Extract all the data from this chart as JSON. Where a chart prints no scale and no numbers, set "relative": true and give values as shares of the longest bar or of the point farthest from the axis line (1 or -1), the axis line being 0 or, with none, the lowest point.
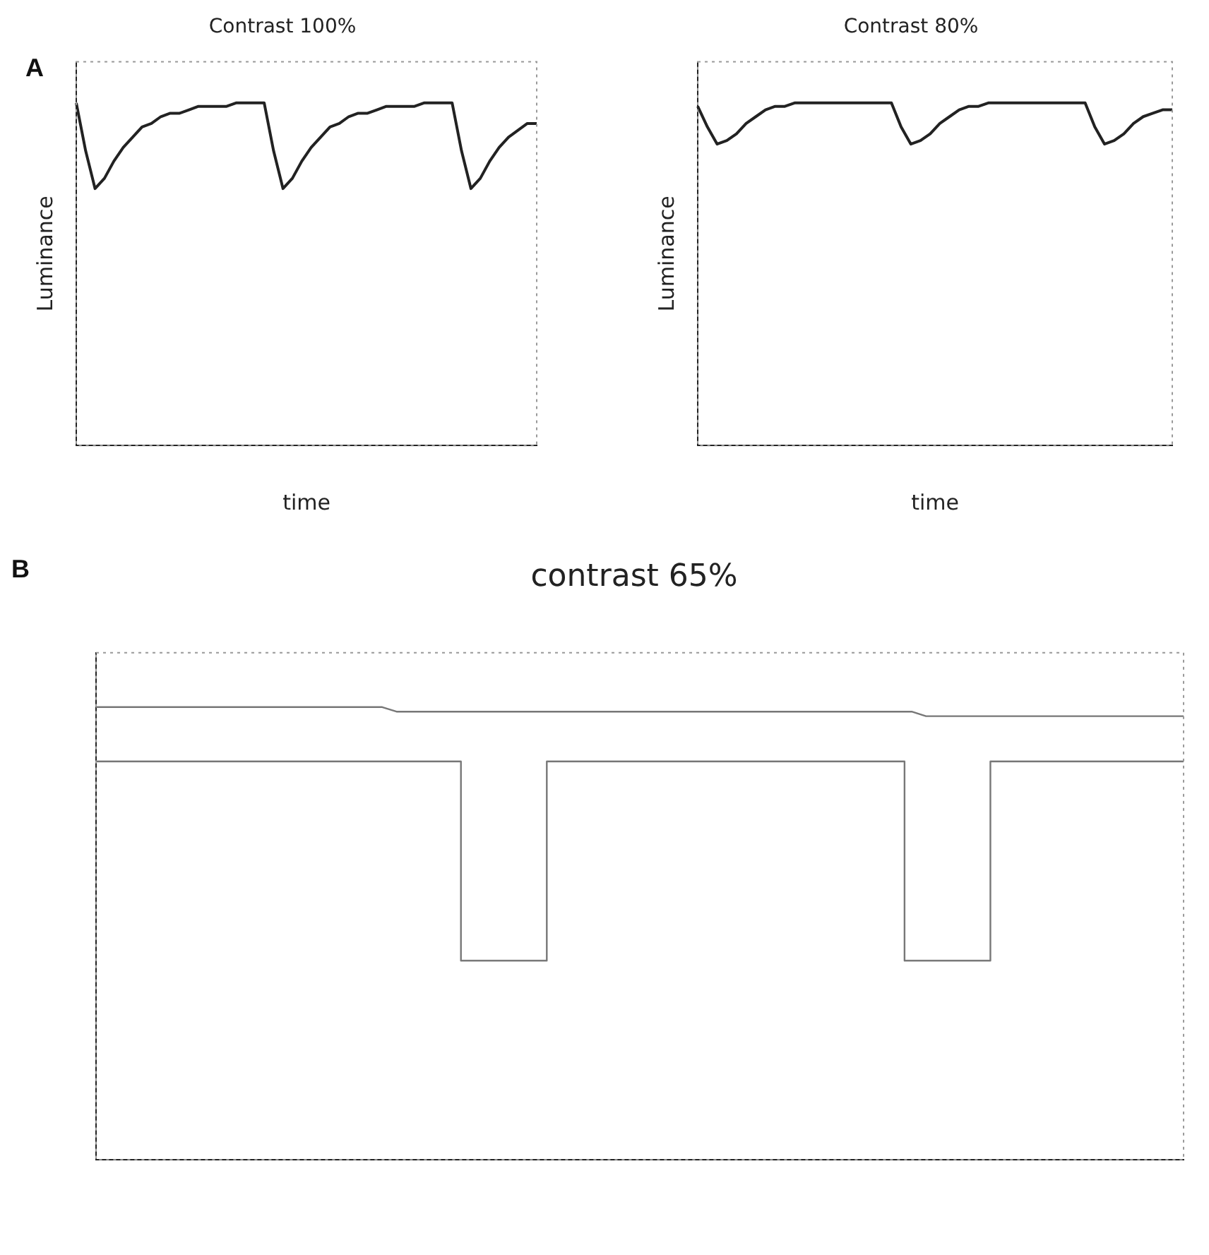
{
  "chart_data": [
    {
      "type": "line",
      "title": "Contrast 100%",
      "xlabel": "time",
      "ylabel": "Luminance",
      "relative": true,
      "legend": false,
      "annotations": [
        "A"
      ],
      "categories": [
        null,
        null,
        null,
        null,
        null,
        null,
        null,
        null,
        null,
        null,
        null,
        null,
        null,
        null,
        null,
        null,
        null,
        null,
        null,
        null,
        null,
        null,
        null,
        null,
        null,
        null,
        null,
        null,
        null,
        null,
        null,
        null,
        null,
        null,
        null,
        null,
        null,
        null,
        null,
        null,
        null,
        null,
        null,
        null,
        null,
        null,
        null,
        null,
        null,
        null
      ],
      "series": [
        {
          "color": "#222222",
          "values": [
            1.0,
            0.86,
            0.75,
            0.78,
            0.83,
            0.87,
            0.9,
            0.93,
            0.94,
            0.96,
            0.97,
            0.97,
            0.98,
            0.99,
            0.99,
            0.99,
            0.99,
            1.0,
            1.0,
            1.0,
            1.0,
            0.86,
            0.75,
            0.78,
            0.83,
            0.87,
            0.9,
            0.93,
            0.94,
            0.96,
            0.97,
            0.97,
            0.98,
            0.99,
            0.99,
            0.99,
            0.99,
            1.0,
            1.0,
            1.0,
            1.0,
            0.86,
            0.75,
            0.78,
            0.83,
            0.87,
            0.9,
            0.92,
            0.94,
            0.94
          ]
        }
      ]
    },
    {
      "type": "line",
      "title": "Contrast 80%",
      "xlabel": "time",
      "ylabel": "Luminance",
      "relative": true,
      "legend": false,
      "categories": [
        null,
        null,
        null,
        null,
        null,
        null,
        null,
        null,
        null,
        null,
        null,
        null,
        null,
        null,
        null,
        null,
        null,
        null,
        null,
        null,
        null,
        null,
        null,
        null,
        null,
        null,
        null,
        null,
        null,
        null,
        null,
        null,
        null,
        null,
        null,
        null,
        null,
        null,
        null,
        null,
        null,
        null,
        null,
        null,
        null,
        null,
        null,
        null,
        null,
        null
      ],
      "series": [
        {
          "color": "#222222",
          "values": [
            0.99,
            0.93,
            0.88,
            0.89,
            0.91,
            0.94,
            0.96,
            0.98,
            0.99,
            0.99,
            1.0,
            1.0,
            1.0,
            1.0,
            1.0,
            1.0,
            1.0,
            1.0,
            1.0,
            1.0,
            1.0,
            0.93,
            0.88,
            0.89,
            0.91,
            0.94,
            0.96,
            0.98,
            0.99,
            0.99,
            1.0,
            1.0,
            1.0,
            1.0,
            1.0,
            1.0,
            1.0,
            1.0,
            1.0,
            1.0,
            1.0,
            0.93,
            0.88,
            0.89,
            0.91,
            0.94,
            0.96,
            0.97,
            0.98,
            0.98
          ]
        }
      ]
    },
    {
      "type": "line",
      "title": "contrast 65%",
      "relative": true,
      "legend": false,
      "annotations": [
        "B"
      ],
      "categories": [
        null,
        null,
        null,
        null,
        null,
        null,
        null,
        null,
        null,
        null,
        null,
        null,
        null,
        null,
        null,
        null,
        null,
        null,
        null,
        null,
        null,
        null,
        null,
        null,
        null,
        null,
        null,
        null,
        null,
        null,
        null,
        null,
        null,
        null,
        null,
        null,
        null,
        null,
        null,
        null,
        null,
        null,
        null,
        null,
        null,
        null,
        null,
        null,
        null,
        null,
        null,
        null,
        null,
        null,
        null,
        null,
        null,
        null,
        null,
        null,
        null,
        null,
        null,
        null,
        null,
        null,
        null,
        null,
        null,
        null,
        null,
        null,
        null,
        null,
        null,
        null,
        null
      ],
      "series": [
        {
          "color": "#777777",
          "values": [
            1.0,
            1.0,
            1.0,
            1.0,
            1.0,
            1.0,
            1.0,
            1.0,
            1.0,
            1.0,
            1.0,
            1.0,
            1.0,
            1.0,
            1.0,
            1.0,
            1.0,
            1.0,
            1.0,
            1.0,
            1.0,
            0.99,
            0.99,
            0.99,
            0.99,
            0.99,
            0.99,
            0.99,
            0.99,
            0.99,
            0.99,
            0.99,
            0.99,
            0.99,
            0.99,
            0.99,
            0.99,
            0.99,
            0.99,
            0.99,
            0.99,
            0.99,
            0.99,
            0.99,
            0.99,
            0.99,
            0.99,
            0.99,
            0.99,
            0.99,
            0.99,
            0.99,
            0.99,
            0.99,
            0.99,
            0.99,
            0.99,
            0.99,
            0.98,
            0.98,
            0.98,
            0.98,
            0.98,
            0.98,
            0.98,
            0.98,
            0.98,
            0.98,
            0.98,
            0.98,
            0.98,
            0.98,
            0.98,
            0.98,
            0.98,
            0.98,
            0.98
          ]
        },
        {
          "type": "step",
          "color": "#777777",
          "values": [
            0.88,
            0.88,
            0.88,
            0.88,
            0.88,
            0.88,
            0.88,
            0.88,
            0.88,
            0.88,
            0.88,
            0.88,
            0.88,
            0.88,
            0.88,
            0.88,
            0.88,
            0.88,
            0.88,
            0.88,
            0.88,
            0.88,
            0.88,
            0.88,
            0.88,
            0.88,
            0.44,
            0.44,
            0.44,
            0.44,
            0.44,
            0.44,
            0.88,
            0.88,
            0.88,
            0.88,
            0.88,
            0.88,
            0.88,
            0.88,
            0.88,
            0.88,
            0.88,
            0.88,
            0.88,
            0.88,
            0.88,
            0.88,
            0.88,
            0.88,
            0.88,
            0.88,
            0.88,
            0.88,
            0.88,
            0.88,
            0.88,
            0.44,
            0.44,
            0.44,
            0.44,
            0.44,
            0.44,
            0.88,
            0.88,
            0.88,
            0.88,
            0.88,
            0.88,
            0.88,
            0.88,
            0.88,
            0.88,
            0.88,
            0.88,
            0.88,
            0.88
          ]
        }
      ]
    }
  ]
}
